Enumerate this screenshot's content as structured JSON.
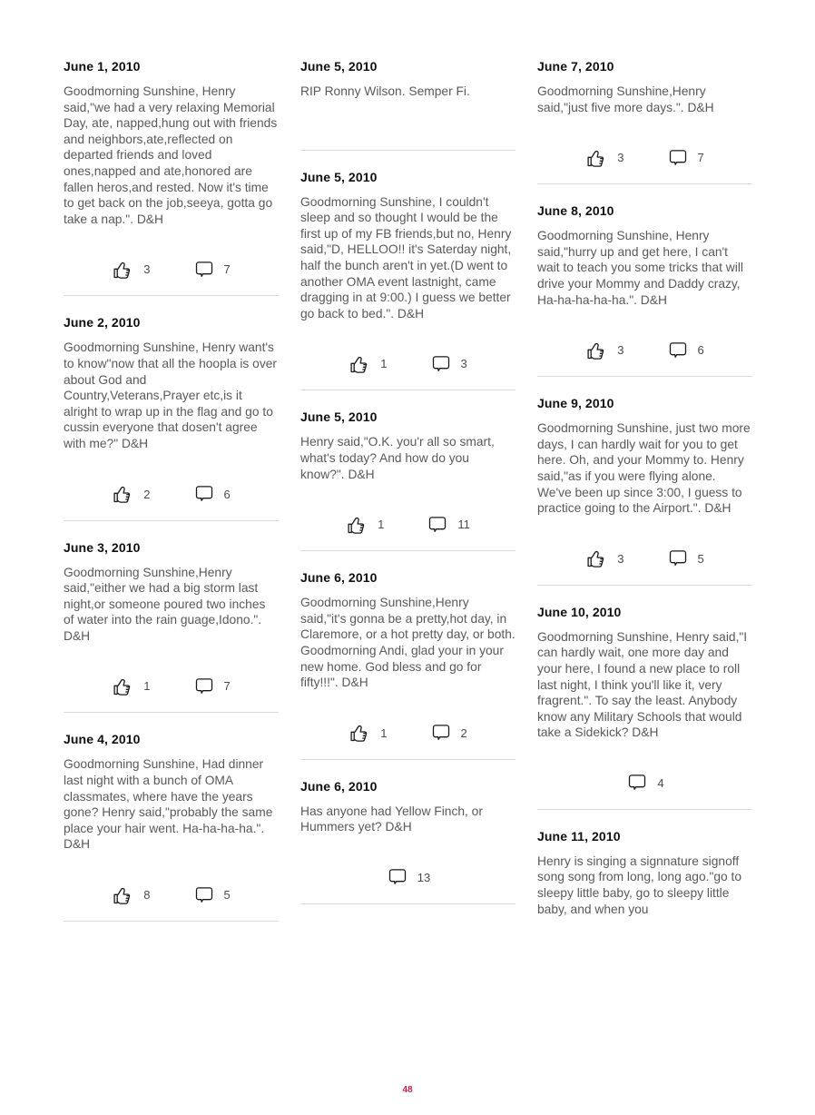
{
  "page": {
    "number": "48",
    "accent_color": "#b3234b",
    "heading_color": "#101010",
    "body_text_color": "#595959",
    "divider_color": "#d9d9d9",
    "background_color": "#ffffff"
  },
  "icons": {
    "like": "thumbs-up-icon",
    "comment": "comment-bubble-icon"
  },
  "columns": [
    {
      "posts": [
        {
          "date": "June 1, 2010",
          "body": "Goodmorning Sunshine, Henry said,\"we had a very relaxing Memorial Day, ate, napped,hung out with friends and neighbors,ate,reflected on departed friends and loved ones,napped and ate,honored are fallen heros,and rested. Now it's time to get back on the job,seeya, gotta go take a nap.\". D&H",
          "likes": 3,
          "comments": 7
        },
        {
          "date": "June 2, 2010",
          "body": "Goodmorning Sunshine, Henry want's to know\"now that all the hoopla is over about God and Country,Veterans,Prayer etc,is it alright to wrap up in the flag and go to cussin everyone that dosen't agree with me?\" D&H",
          "likes": 2,
          "comments": 6
        },
        {
          "date": "June 3, 2010",
          "body": "Goodmorning Sunshine,Henry said,\"either we had a big storm last night,or someone poured two inches of water into the rain guage,Idono.\". D&H",
          "likes": 1,
          "comments": 7
        },
        {
          "date": "June 4, 2010",
          "body": "Goodmorning Sunshine, Had dinner last night with a bunch of OMA classmates, where have the years gone? Henry said,\"probably the same place your hair went. Ha-ha-ha-ha.\". D&H",
          "likes": 8,
          "comments": 5
        }
      ]
    },
    {
      "posts": [
        {
          "date": "June 5, 2010",
          "body": "RIP Ronny Wilson. Semper Fi.",
          "likes": null,
          "comments": null
        },
        {
          "date": "June 5, 2010",
          "body": "Goodmorning Sunshine, I couldn't sleep and so thought I would be the first up of my FB friends,but no, Henry said,\"D, HELLOO!! it's Saterday night, half the bunch aren't in yet.(D went to another OMA event lastnight, came dragging in at 9:00.) I guess we better go back to bed.\". D&H",
          "likes": 1,
          "comments": 3
        },
        {
          "date": "June 5, 2010",
          "body": "Henry said,\"O.K. you'r all so smart, what's today? And how do you know?\". D&H",
          "likes": 1,
          "comments": 11
        },
        {
          "date": "June 6, 2010",
          "body": "Goodmorning Sunshine,Henry said,\"it's gonna be a pretty,hot day, in Claremore, or a hot pretty day, or both. Goodmorning Andi, glad your in your new home. God bless and go for fifty!!!\". D&H",
          "likes": 1,
          "comments": 2
        },
        {
          "date": "June 6, 2010",
          "body": "Has anyone had Yellow Finch, or Hummers yet? D&H",
          "likes": null,
          "comments": 13
        }
      ]
    },
    {
      "posts": [
        {
          "date": "June 7, 2010",
          "body": "Goodmorning Sunshine,Henry said,\"just five more days.\". D&H",
          "likes": 3,
          "comments": 7
        },
        {
          "date": "June 8, 2010",
          "body": "Goodmorning Sunshine, Henry said,\"hurry up and get here, I can't wait to teach you some tricks that will drive your Mommy and Daddy crazy, Ha-ha-ha-ha-ha.\". D&H",
          "likes": 3,
          "comments": 6
        },
        {
          "date": "June 9, 2010",
          "body": "Goodmorning Sunshine, just two more days, I can hardly wait for you to get here. Oh, and your Mommy to. Henry said,\"as if you were flying alone. We've been up since 3:00, I guess to practice going to the Airport.\". D&H",
          "likes": 3,
          "comments": 5
        },
        {
          "date": "June 10, 2010",
          "body": "Goodmorning Sunshine, Henry said,\"I can hardly wait, one more day and your here, I found a new place to roll last night, I think you'll like it, very fragrent.\". To say the least. Anybody know any Military Schools that would take a Sidekick? D&H",
          "likes": null,
          "comments": 4
        },
        {
          "date": "June 11, 2010",
          "body": "Henry is singing a signnature signoff song song from long, long ago.\"go to sleepy little baby, go to sleepy little baby, and when you",
          "likes": null,
          "comments": null,
          "divider": false
        }
      ]
    }
  ]
}
